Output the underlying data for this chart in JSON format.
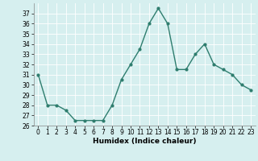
{
  "x": [
    0,
    1,
    2,
    3,
    4,
    5,
    6,
    7,
    8,
    9,
    10,
    11,
    12,
    13,
    14,
    15,
    16,
    17,
    18,
    19,
    20,
    21,
    22,
    23
  ],
  "y": [
    31,
    28,
    28,
    27.5,
    26.5,
    26.5,
    26.5,
    26.5,
    28,
    30.5,
    32,
    33.5,
    36,
    37.5,
    36,
    31.5,
    31.5,
    33,
    34,
    32,
    31.5,
    31,
    30,
    29.5
  ],
  "line_color": "#2e7d6e",
  "marker": "o",
  "marker_size": 2.0,
  "line_width": 1.0,
  "bg_color": "#d6efef",
  "grid_color": "#ffffff",
  "xlabel": "Humidex (Indice chaleur)",
  "xlim": [
    -0.5,
    23.5
  ],
  "ylim": [
    26,
    38
  ],
  "yticks": [
    26,
    27,
    28,
    29,
    30,
    31,
    32,
    33,
    34,
    35,
    36,
    37
  ],
  "xticks": [
    0,
    1,
    2,
    3,
    4,
    5,
    6,
    7,
    8,
    9,
    10,
    11,
    12,
    13,
    14,
    15,
    16,
    17,
    18,
    19,
    20,
    21,
    22,
    23
  ],
  "tick_fontsize": 5.5,
  "label_fontsize": 6.5
}
